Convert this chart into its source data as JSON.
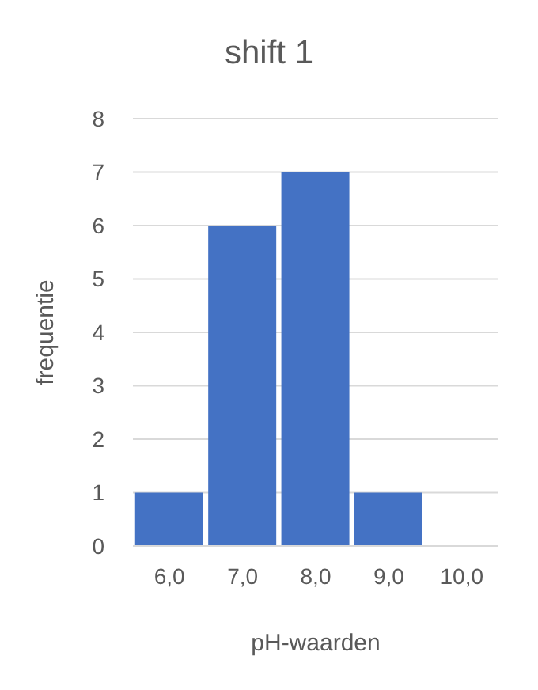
{
  "chart_data": {
    "type": "bar",
    "title": "shift 1",
    "xlabel": "pH-waarden",
    "ylabel": "frequentie",
    "categories": [
      "6,0",
      "7,0",
      "8,0",
      "9,0",
      "10,0"
    ],
    "values": [
      1,
      6,
      7,
      1,
      0
    ],
    "color": "#4472c4",
    "ylim": [
      0,
      8
    ],
    "yticks": [
      0,
      1,
      2,
      3,
      4,
      5,
      6,
      7,
      8
    ],
    "grid": "y"
  }
}
